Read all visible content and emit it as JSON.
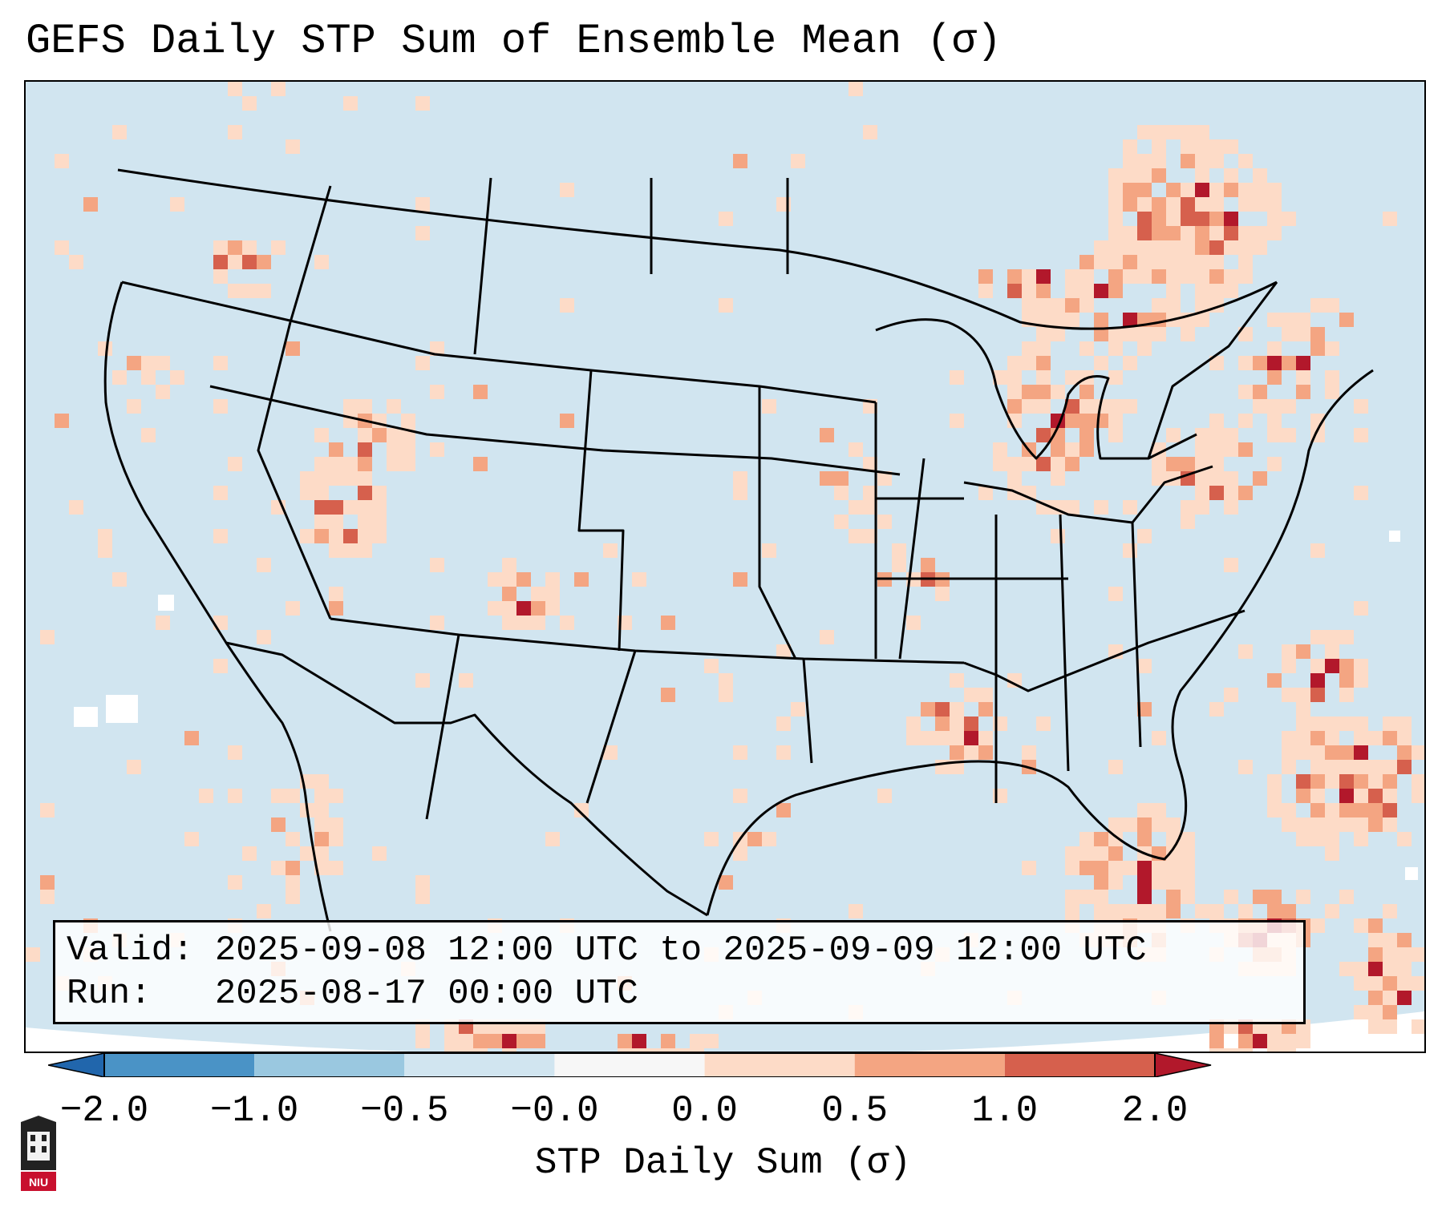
{
  "title": "GEFS Daily STP Sum of Ensemble Mean (σ)",
  "info": {
    "valid_line": "Valid: 2025-09-08 12:00 UTC to 2025-09-09 12:00 UTC",
    "run_line": "Run:   2025-08-17 00:00 UTC"
  },
  "colorbar": {
    "label": "STP Daily Sum (σ)",
    "ticks": [
      "−2.0",
      "−1.0",
      "−0.5",
      "−0.0",
      "0.0",
      "0.5",
      "1.0",
      "2.0"
    ],
    "bins": [
      {
        "from": -2.0,
        "to": -1.0,
        "color": "#4a93c6"
      },
      {
        "from": -1.0,
        "to": -0.5,
        "color": "#9ac8e0"
      },
      {
        "from": -0.5,
        "to": -0.0,
        "color": "#d1e5f0"
      },
      {
        "from": -0.0,
        "to": 0.0,
        "color": "#f7f7f7"
      },
      {
        "from": 0.0,
        "to": 0.5,
        "color": "#fddbc7"
      },
      {
        "from": 0.5,
        "to": 1.0,
        "color": "#f4a582"
      },
      {
        "from": 1.0,
        "to": 2.0,
        "color": "#d6604d"
      }
    ],
    "under_color": "#2166ac",
    "over_color": "#b2182b"
  },
  "map": {
    "background_color": "#d1e5f0",
    "region": "Continental United States",
    "boundaries": "state and coastline outlines"
  },
  "logo": {
    "name": "NIU"
  }
}
